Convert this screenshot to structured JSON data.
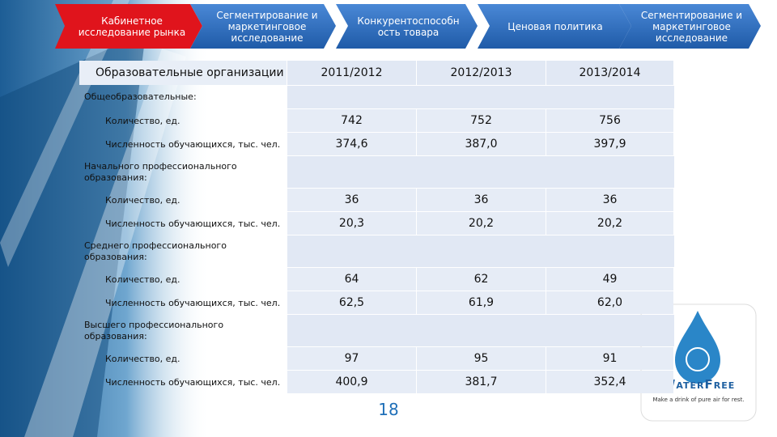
{
  "nav": [
    "Кабинетное исследование рынка",
    "Сегментирование и маркетинговое исследование",
    "Конкурентоспособн ость товара",
    "Ценовая политика",
    "Сегментирование и маркетинговое исследование"
  ],
  "table": {
    "header": [
      "Образовательные организации",
      "2011/2012",
      "2012/2013",
      "2013/2014"
    ],
    "sections": [
      {
        "title": "Общеобразовательные:",
        "rows": [
          {
            "label": "Количество, ед.",
            "values": [
              "742",
              "752",
              "756"
            ]
          },
          {
            "label": "Численность обучающихся, тыс. чел.",
            "values": [
              "374,6",
              "387,0",
              "397,9"
            ]
          }
        ]
      },
      {
        "title": "Начального профессионального образования:",
        "rows": [
          {
            "label": "Количество, ед.",
            "values": [
              "36",
              "36",
              "36"
            ]
          },
          {
            "label": "Численность обучающихся, тыс. чел.",
            "values": [
              "20,3",
              "20,2",
              "20,2"
            ]
          }
        ]
      },
      {
        "title": "Среднего профессионального образования:",
        "rows": [
          {
            "label": "Количество, ед.",
            "values": [
              "64",
              "62",
              "49"
            ]
          },
          {
            "label": "Численность обучающихся, тыс. чел.",
            "values": [
              "62,5",
              "61,9",
              "62,0"
            ]
          }
        ]
      },
      {
        "title": "Высшего профессионального образования:",
        "rows": [
          {
            "label": "Количество, ед.",
            "values": [
              "97",
              "95",
              "91"
            ]
          },
          {
            "label": "Численность обучающихся, тыс. чел.",
            "values": [
              "400,9",
              "381,7",
              "352,4"
            ]
          }
        ]
      }
    ]
  },
  "page_number": "18",
  "logo": {
    "name": "WaterFree",
    "tagline": "Make a drink of pure air for rest."
  }
}
